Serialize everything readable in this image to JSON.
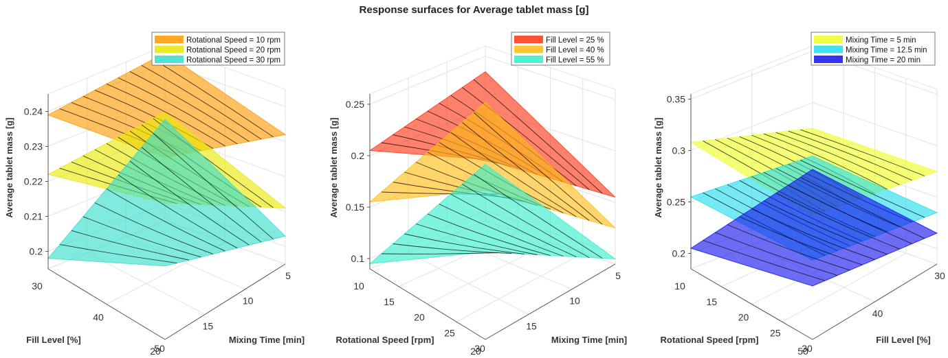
{
  "figure_title": "Response surfaces for Average tablet mass [g]",
  "chart_data": [
    {
      "type": "surface",
      "xlabel": "Mixing Time [min]",
      "ylabel": "Fill Level [%]",
      "zlabel": "Average tablet mass [g]",
      "x_ticks": [
        5,
        10,
        15,
        20
      ],
      "y_ticks": [
        30,
        40,
        50
      ],
      "z_ticks": [
        0.2,
        0.21,
        0.22,
        0.23,
        0.24
      ],
      "zlim": [
        0.195,
        0.245
      ],
      "series": [
        {
          "name": "Rotational Speed = 10 rpm",
          "color": "#ff9900",
          "z_corners": [
            0.239,
            0.247,
            0.232,
            0.243
          ]
        },
        {
          "name": "Rotational Speed = 20 rpm",
          "color": "#e8e800",
          "z_corners": [
            0.222,
            0.234,
            0.211,
            0.226
          ]
        },
        {
          "name": "Rotational Speed = 30 rpm",
          "color": "#33ddcc",
          "z_corners": [
            0.198,
            0.216,
            0.203,
            0.224
          ]
        }
      ]
    },
    {
      "type": "surface",
      "xlabel": "Mixing Time [min]",
      "ylabel": "Rotational Speed [rpm]",
      "zlabel": "Average tablet mass [g]",
      "x_ticks": [
        5,
        10,
        15,
        20
      ],
      "y_ticks": [
        10,
        15,
        20,
        25,
        30
      ],
      "z_ticks": [
        0.1,
        0.15,
        0.2,
        0.25
      ],
      "zlim": [
        0.09,
        0.26
      ],
      "series": [
        {
          "name": "Fill Level = 25 %",
          "color": "#ff3311",
          "z_corners": [
            0.205,
            0.265,
            0.155,
            0.235
          ]
        },
        {
          "name": "Fill Level = 40 %",
          "color": "#ffbb11",
          "z_corners": [
            0.155,
            0.235,
            0.125,
            0.205
          ]
        },
        {
          "name": "Fill Level = 55 %",
          "color": "#33eecc",
          "z_corners": [
            0.095,
            0.175,
            0.095,
            0.145
          ]
        }
      ]
    },
    {
      "type": "surface",
      "xlabel": "Fill Level [%]",
      "ylabel": "Rotational Speed [rpm]",
      "zlabel": "Average tablet mass [g]",
      "x_ticks": [
        30,
        40,
        50
      ],
      "y_ticks": [
        10,
        15,
        20,
        25,
        30
      ],
      "z_ticks": [
        0.2,
        0.25,
        0.3,
        0.35
      ],
      "zlim": [
        0.185,
        0.355
      ],
      "series": [
        {
          "name": "Mixing Time = 5 min",
          "color": "#eeff22",
          "z_corners": [
            0.308,
            0.305,
            0.275,
            0.275
          ]
        },
        {
          "name": "Mixing Time = 12.5 min",
          "color": "#22ddee",
          "z_corners": [
            0.255,
            0.262,
            0.235,
            0.248
          ]
        },
        {
          "name": "Mixing Time = 20 min",
          "color": "#1111ee",
          "z_corners": [
            0.205,
            0.237,
            0.215,
            0.235
          ]
        }
      ]
    }
  ]
}
